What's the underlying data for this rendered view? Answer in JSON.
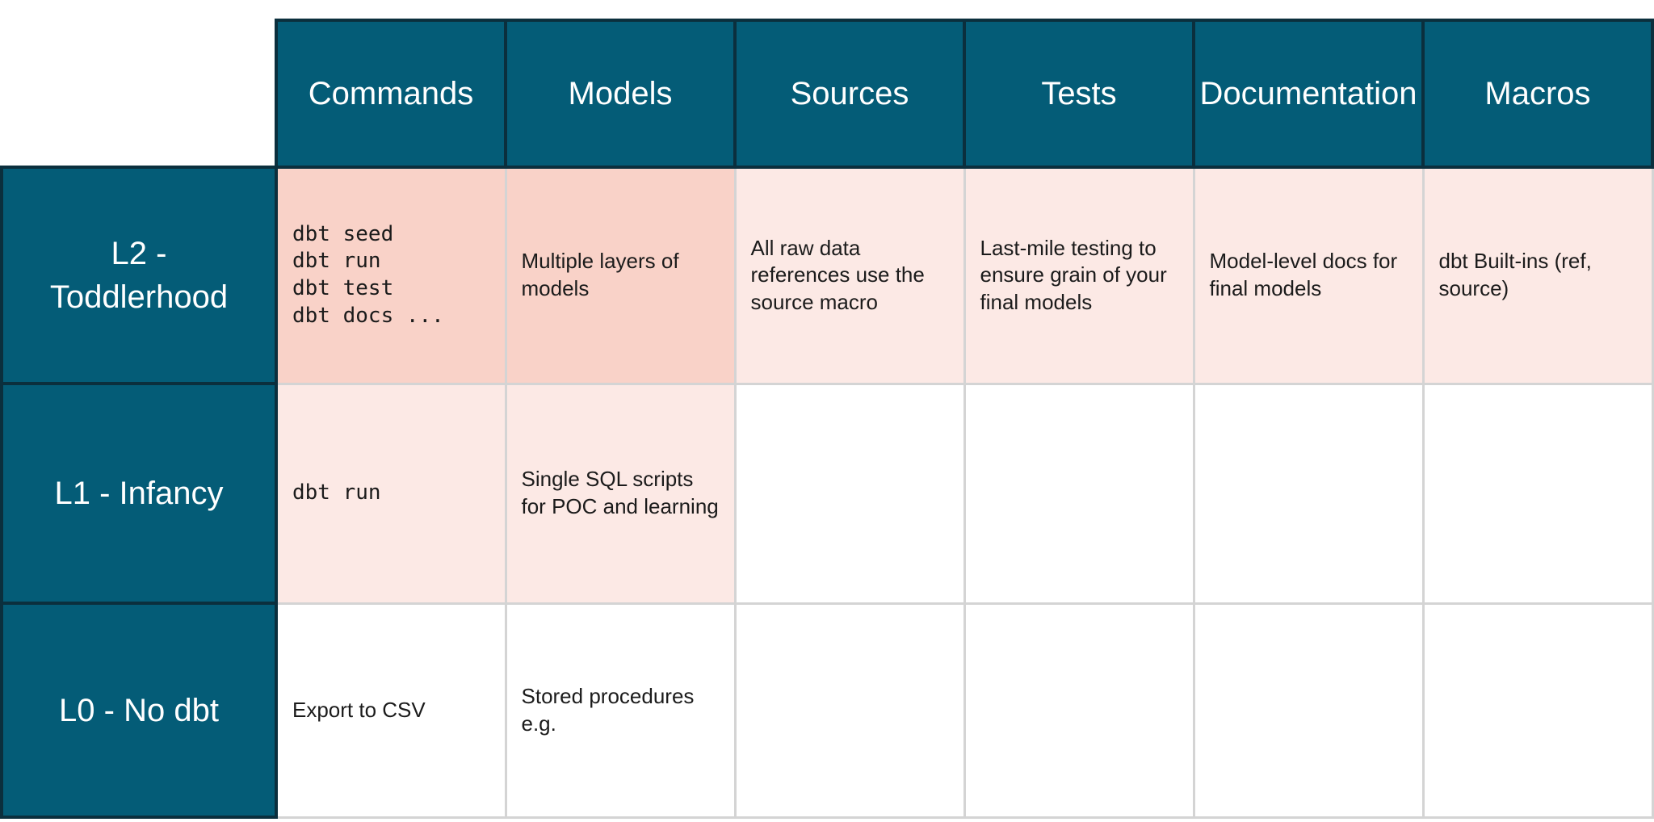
{
  "colors": {
    "teal": "#045C77",
    "teal_border": "#0B2F3D",
    "pink_strong": "#F9D2C8",
    "pink_light": "#FCE9E5",
    "grid_gray": "#D4D4D4",
    "header_text": "#FFFFFF",
    "body_text": "#1B1B1B"
  },
  "table": {
    "corner_label": "",
    "columns": [
      "Commands",
      "Models",
      "Sources",
      "Tests",
      "Documentation",
      "Macros"
    ],
    "rows": [
      {
        "label": "L2 -\nToddlerhood",
        "cells": {
          "commands": "dbt seed\ndbt run\ndbt test\ndbt docs ...",
          "models": "Multiple layers of models",
          "sources": "All raw data references use the source macro",
          "tests": "Last-mile testing to ensure grain of your final models",
          "documentation": "Model-level docs for final models",
          "macros": "dbt Built-ins (ref, source)"
        }
      },
      {
        "label": "L1 - Infancy",
        "cells": {
          "commands": "dbt run",
          "models": "Single SQL scripts for POC and learning",
          "sources": "",
          "tests": "",
          "documentation": "",
          "macros": ""
        }
      },
      {
        "label": "L0 - No dbt",
        "cells": {
          "commands": "Export to CSV",
          "models": "Stored procedures e.g.",
          "sources": "",
          "tests": "",
          "documentation": "",
          "macros": ""
        }
      }
    ]
  }
}
